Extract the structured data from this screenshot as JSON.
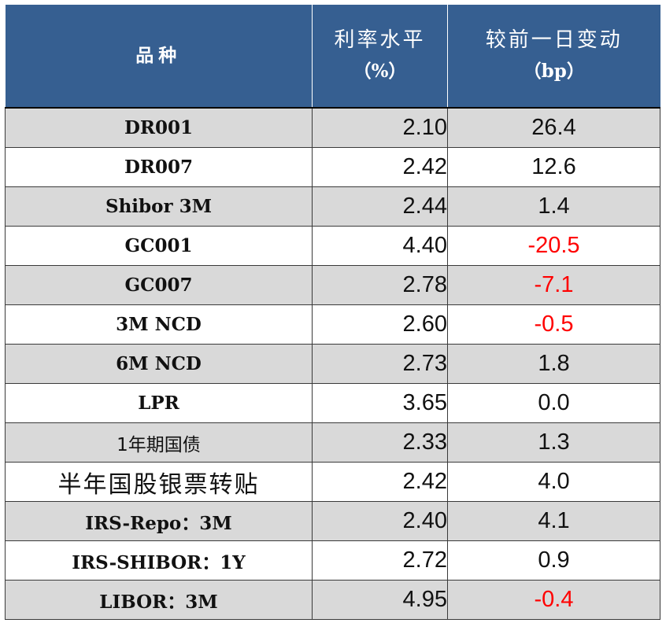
{
  "table": {
    "headers": {
      "name": "品种",
      "rate_title": "利率水平",
      "rate_unit": "（%）",
      "change_title": "较前一日变动",
      "change_unit": "（bp）"
    },
    "colors": {
      "header_bg": "#365f91",
      "header_text": "#ffffff",
      "stripe": "#d9d9d9",
      "negative": "#ff0000"
    },
    "rows": [
      {
        "name": "DR001",
        "rate": "2.10",
        "change": "26.4"
      },
      {
        "name": "DR007",
        "rate": "2.42",
        "change": "12.6"
      },
      {
        "name": "Shibor 3M",
        "rate": "2.44",
        "change": "1.4"
      },
      {
        "name": "GC001",
        "rate": "4.40",
        "change": "-20.5"
      },
      {
        "name": "GC007",
        "rate": "2.78",
        "change": "-7.1"
      },
      {
        "name": "3M NCD",
        "rate": "2.60",
        "change": "-0.5"
      },
      {
        "name": "6M NCD",
        "rate": "2.73",
        "change": "1.8"
      },
      {
        "name": "LPR",
        "rate": "3.65",
        "change": "0.0"
      },
      {
        "name": "1年期国债",
        "rate": "2.33",
        "change": "1.3"
      },
      {
        "name": "半年国股银票转贴",
        "rate": "2.42",
        "change": "4.0"
      },
      {
        "name": "IRS-Repo：3M",
        "rate": "2.40",
        "change": "4.1"
      },
      {
        "name": "IRS-SHIBOR：1Y",
        "rate": "2.72",
        "change": "0.9"
      },
      {
        "name": "LIBOR：3M",
        "rate": "4.95",
        "change": "-0.4"
      }
    ]
  }
}
